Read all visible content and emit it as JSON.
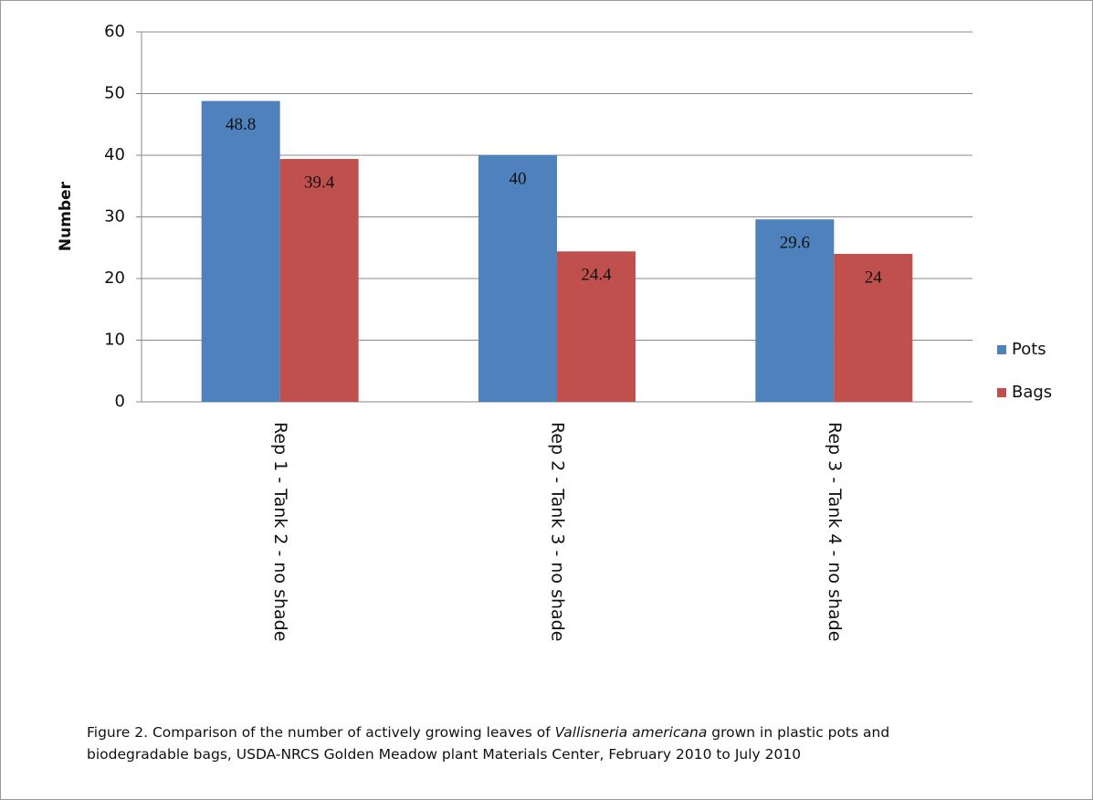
{
  "chart_data": {
    "type": "bar",
    "y_label": "Number",
    "categories": [
      "Rep 1 - Tank 2 - no shade",
      "Rep 2 - Tank 3 - no shade",
      "Rep 3 - Tank 4 - no shade"
    ],
    "series": [
      {
        "name": "Pots",
        "color": "#4f81bd",
        "values": [
          48.8,
          40,
          29.6
        ]
      },
      {
        "name": "Bags",
        "color": "#c0504d",
        "values": [
          39.4,
          24.4,
          24
        ]
      }
    ],
    "ylim": [
      0,
      60
    ],
    "yticks": [
      0,
      10,
      20,
      30,
      40,
      50,
      60
    ],
    "grid": true,
    "legend": "right",
    "caption": [
      "Figure 2. Comparison of the number of actively growing leaves of ",
      "Vallisneria americana",
      " grown in plastic pots and biodegradable bags, USDA-NRCS Golden Meadow plant Materials Center, February 2010  to July 2010"
    ]
  }
}
